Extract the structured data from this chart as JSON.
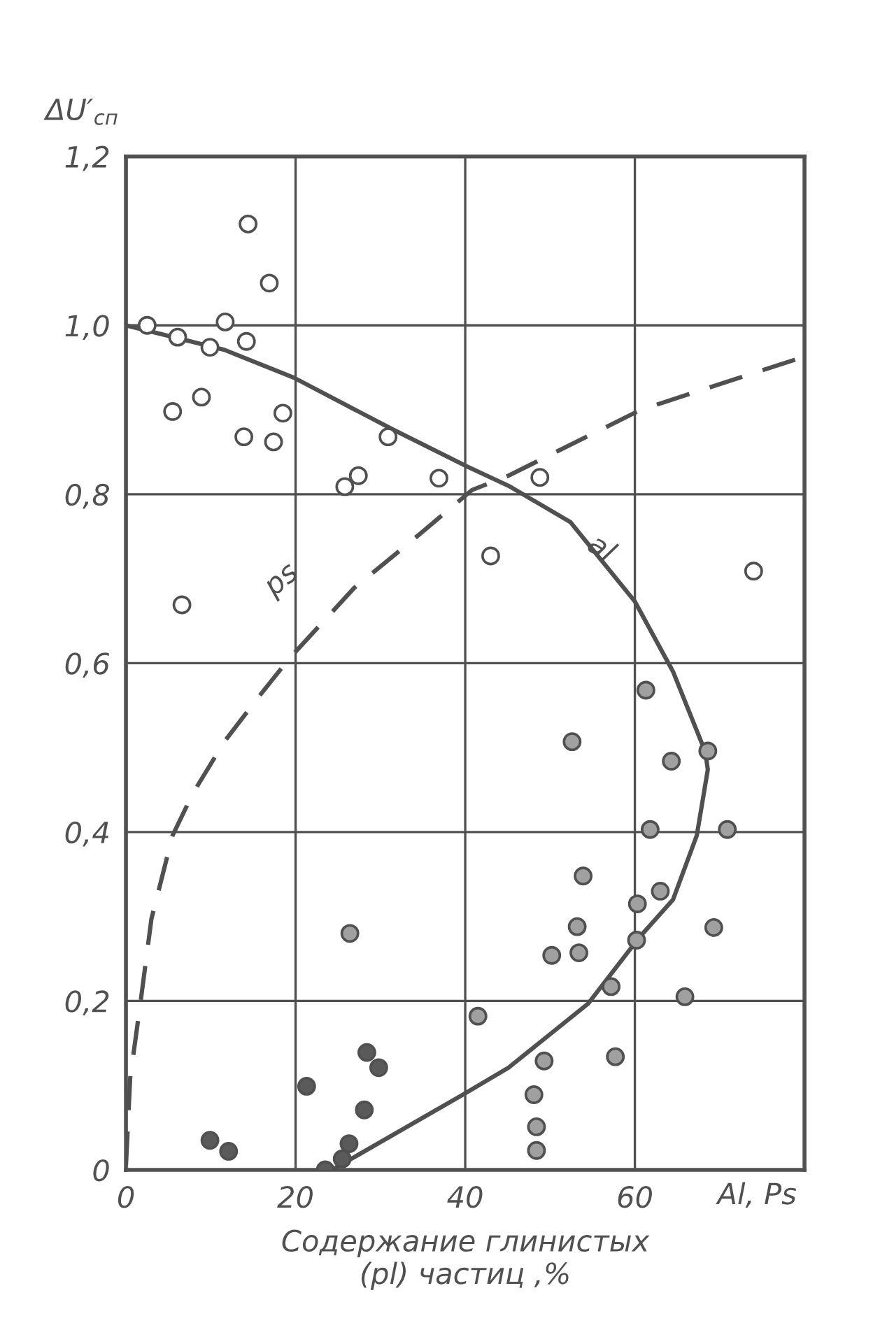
{
  "chart_data": {
    "type": "scatter",
    "xlabel": "Содержание глинистых\n(pl) частиц ,%",
    "ylabel": "ΔU′$_{сп}$",
    "annotations": [
      "Al, Ps"
    ],
    "xlim": [
      0,
      80
    ],
    "xticks": [
      0,
      20,
      40,
      60,
      {
        "value": 80,
        "label": null
      }
    ],
    "ylim": [
      0,
      1.2
    ],
    "yticks": [
      0,
      {
        "value": 0.2,
        "label": "0,2"
      },
      {
        "value": 0.4,
        "label": "0,4"
      },
      {
        "value": 0.6,
        "label": "0,6"
      },
      {
        "value": 0.8,
        "label": "0,8"
      },
      {
        "value": 1.0,
        "label": "1,0"
      },
      {
        "value": 1.2,
        "label": "1,2"
      }
    ],
    "grid": true,
    "legend": false,
    "marker": "circle",
    "series": [
      {
        "color": "#ffffff",
        "x": [
          14.4,
          16.9,
          2.5,
          6.1,
          11.7,
          9.9,
          14.2,
          5.5,
          8.9,
          13.9,
          17.4,
          18.5,
          30.9,
          25.8,
          27.4,
          36.9,
          48.8,
          43.0,
          6.6,
          74.0
        ],
        "values": [
          1.12,
          1.05,
          1.0,
          0.986,
          1.004,
          0.974,
          0.981,
          0.898,
          0.915,
          0.868,
          0.862,
          0.896,
          0.868,
          0.809,
          0.822,
          0.819,
          0.82,
          0.727,
          0.669,
          0.709
        ]
      },
      {
        "color": "#a0a0a0",
        "x": [
          61.3,
          52.6,
          64.3,
          68.6,
          61.8,
          70.9,
          53.9,
          63.0,
          60.3,
          53.2,
          50.2,
          53.4,
          60.2,
          69.3,
          57.2,
          65.9,
          26.4,
          41.5,
          49.3,
          57.7,
          48.1,
          48.4,
          48.4
        ],
        "values": [
          0.568,
          0.507,
          0.484,
          0.496,
          0.403,
          0.403,
          0.348,
          0.33,
          0.315,
          0.288,
          0.254,
          0.257,
          0.272,
          0.287,
          0.217,
          0.205,
          0.28,
          0.182,
          0.129,
          0.134,
          0.089,
          0.051,
          0.023
        ]
      },
      {
        "color": "#5a5a5a",
        "x": [
          21.3,
          28.4,
          29.8,
          28.1,
          9.9,
          12.1,
          26.3,
          25.5,
          23.5
        ],
        "values": [
          0.099,
          0.139,
          0.121,
          0.071,
          0.035,
          0.022,
          0.031,
          0.013,
          0.0
        ]
      },
      {
        "type": "line",
        "name": "al",
        "color": "#505050",
        "line_style": "solid",
        "marker": "none",
        "x": [
          0,
          11.6,
          19.8,
          31.4,
          40.2,
          45.1,
          52.4,
          60.0,
          64.5,
          68.3,
          68.6,
          67.3,
          64.5,
          60.5,
          54.5,
          45.1,
          39.7,
          26.9,
          24.3
        ],
        "values": [
          1.0,
          0.971,
          0.938,
          0.877,
          0.833,
          0.81,
          0.767,
          0.673,
          0.59,
          0.495,
          0.474,
          0.396,
          0.32,
          0.275,
          0.197,
          0.121,
          0.089,
          0.015,
          0.0
        ]
      },
      {
        "type": "line",
        "name": "ps",
        "color": "#505050",
        "line_style": "dashed",
        "marker": "none",
        "x": [
          0,
          0.5,
          1.7,
          3.0,
          5.5,
          7.9,
          11.6,
          15.4,
          19.3,
          26.9,
          33.6,
          40.8,
          45.1,
          60.7,
          80.0
        ],
        "values": [
          0.005,
          0.109,
          0.197,
          0.297,
          0.396,
          0.446,
          0.507,
          0.557,
          0.606,
          0.689,
          0.744,
          0.805,
          0.822,
          0.9,
          0.963
        ]
      }
    ]
  }
}
